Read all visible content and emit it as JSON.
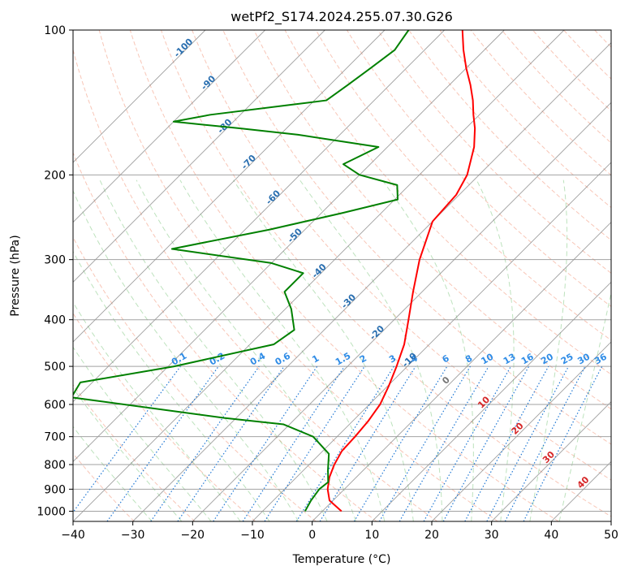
{
  "chart_data": {
    "type": "line",
    "title": "wetPf2_S174.2024.255.07.30.G26",
    "xlabel": "Temperature (°C)",
    "ylabel": "Pressure (hPa)",
    "xlim": [
      -40,
      50
    ],
    "ylim": [
      1050,
      100
    ],
    "y_scale": "log",
    "grid": true,
    "x_ticks": [
      -40,
      -30,
      -20,
      -10,
      0,
      10,
      20,
      30,
      40,
      50
    ],
    "y_ticks": [
      1000,
      900,
      800,
      700,
      600,
      500,
      400,
      300,
      200,
      100
    ],
    "isotherms": [
      -100,
      -90,
      -80,
      -70,
      -60,
      -50,
      -40,
      -30,
      -20,
      -10,
      0,
      10,
      20,
      30,
      40
    ],
    "mixing_ratio_labels": [
      "0.1",
      "0.2",
      "0.4",
      "0.6",
      "1",
      "1.5",
      "2",
      "3",
      "4",
      "6",
      "8",
      "10",
      "13",
      "16",
      "20",
      "25",
      "30",
      "36"
    ],
    "mixing_ratios": [
      0.1,
      0.2,
      0.4,
      0.6,
      1,
      1.5,
      2,
      3,
      4,
      6,
      8,
      10,
      13,
      16,
      20,
      25,
      30,
      36
    ],
    "series": [
      {
        "color": "#ff0000",
        "pressure": [
          1000,
          950,
          900,
          850,
          800,
          750,
          700,
          650,
          600,
          550,
          500,
          450,
          400,
          350,
          300,
          250,
          220,
          200,
          175,
          160,
          150,
          140,
          130,
          120,
          110,
          100
        ],
        "values": [
          3.2,
          -0.6,
          -2.8,
          -4.5,
          -5.8,
          -6.8,
          -7.0,
          -7.4,
          -8.2,
          -9.8,
          -11.8,
          -14.2,
          -17.6,
          -21.5,
          -25.8,
          -30.0,
          -30.5,
          -32.0,
          -35.5,
          -38.5,
          -41.0,
          -43.5,
          -46.5,
          -50.0,
          -53.5,
          -57.0
        ]
      },
      {
        "color": "#008000",
        "pressure": [
          1000,
          950,
          900,
          870,
          820,
          760,
          700,
          660,
          640,
          580,
          540,
          500,
          450,
          420,
          380,
          350,
          320,
          305,
          285,
          260,
          240,
          225,
          210,
          200,
          190,
          175,
          165,
          160,
          155,
          150,
          140,
          130,
          120,
          110,
          100
        ],
        "values": [
          -2.9,
          -3.7,
          -4.2,
          -3.9,
          -6.0,
          -8.5,
          -14.0,
          -21.0,
          -32.0,
          -61.0,
          -62.0,
          -49.0,
          -36.0,
          -35.0,
          -39.0,
          -43.0,
          -43.0,
          -50.0,
          -69.0,
          -56.0,
          -46.5,
          -39.5,
          -42.0,
          -50.0,
          -54.5,
          -51.5,
          -67.0,
          -78.0,
          -90.0,
          -85.0,
          -68.0,
          -67.0,
          -66.0,
          -65.0,
          -66.0
        ]
      }
    ]
  }
}
